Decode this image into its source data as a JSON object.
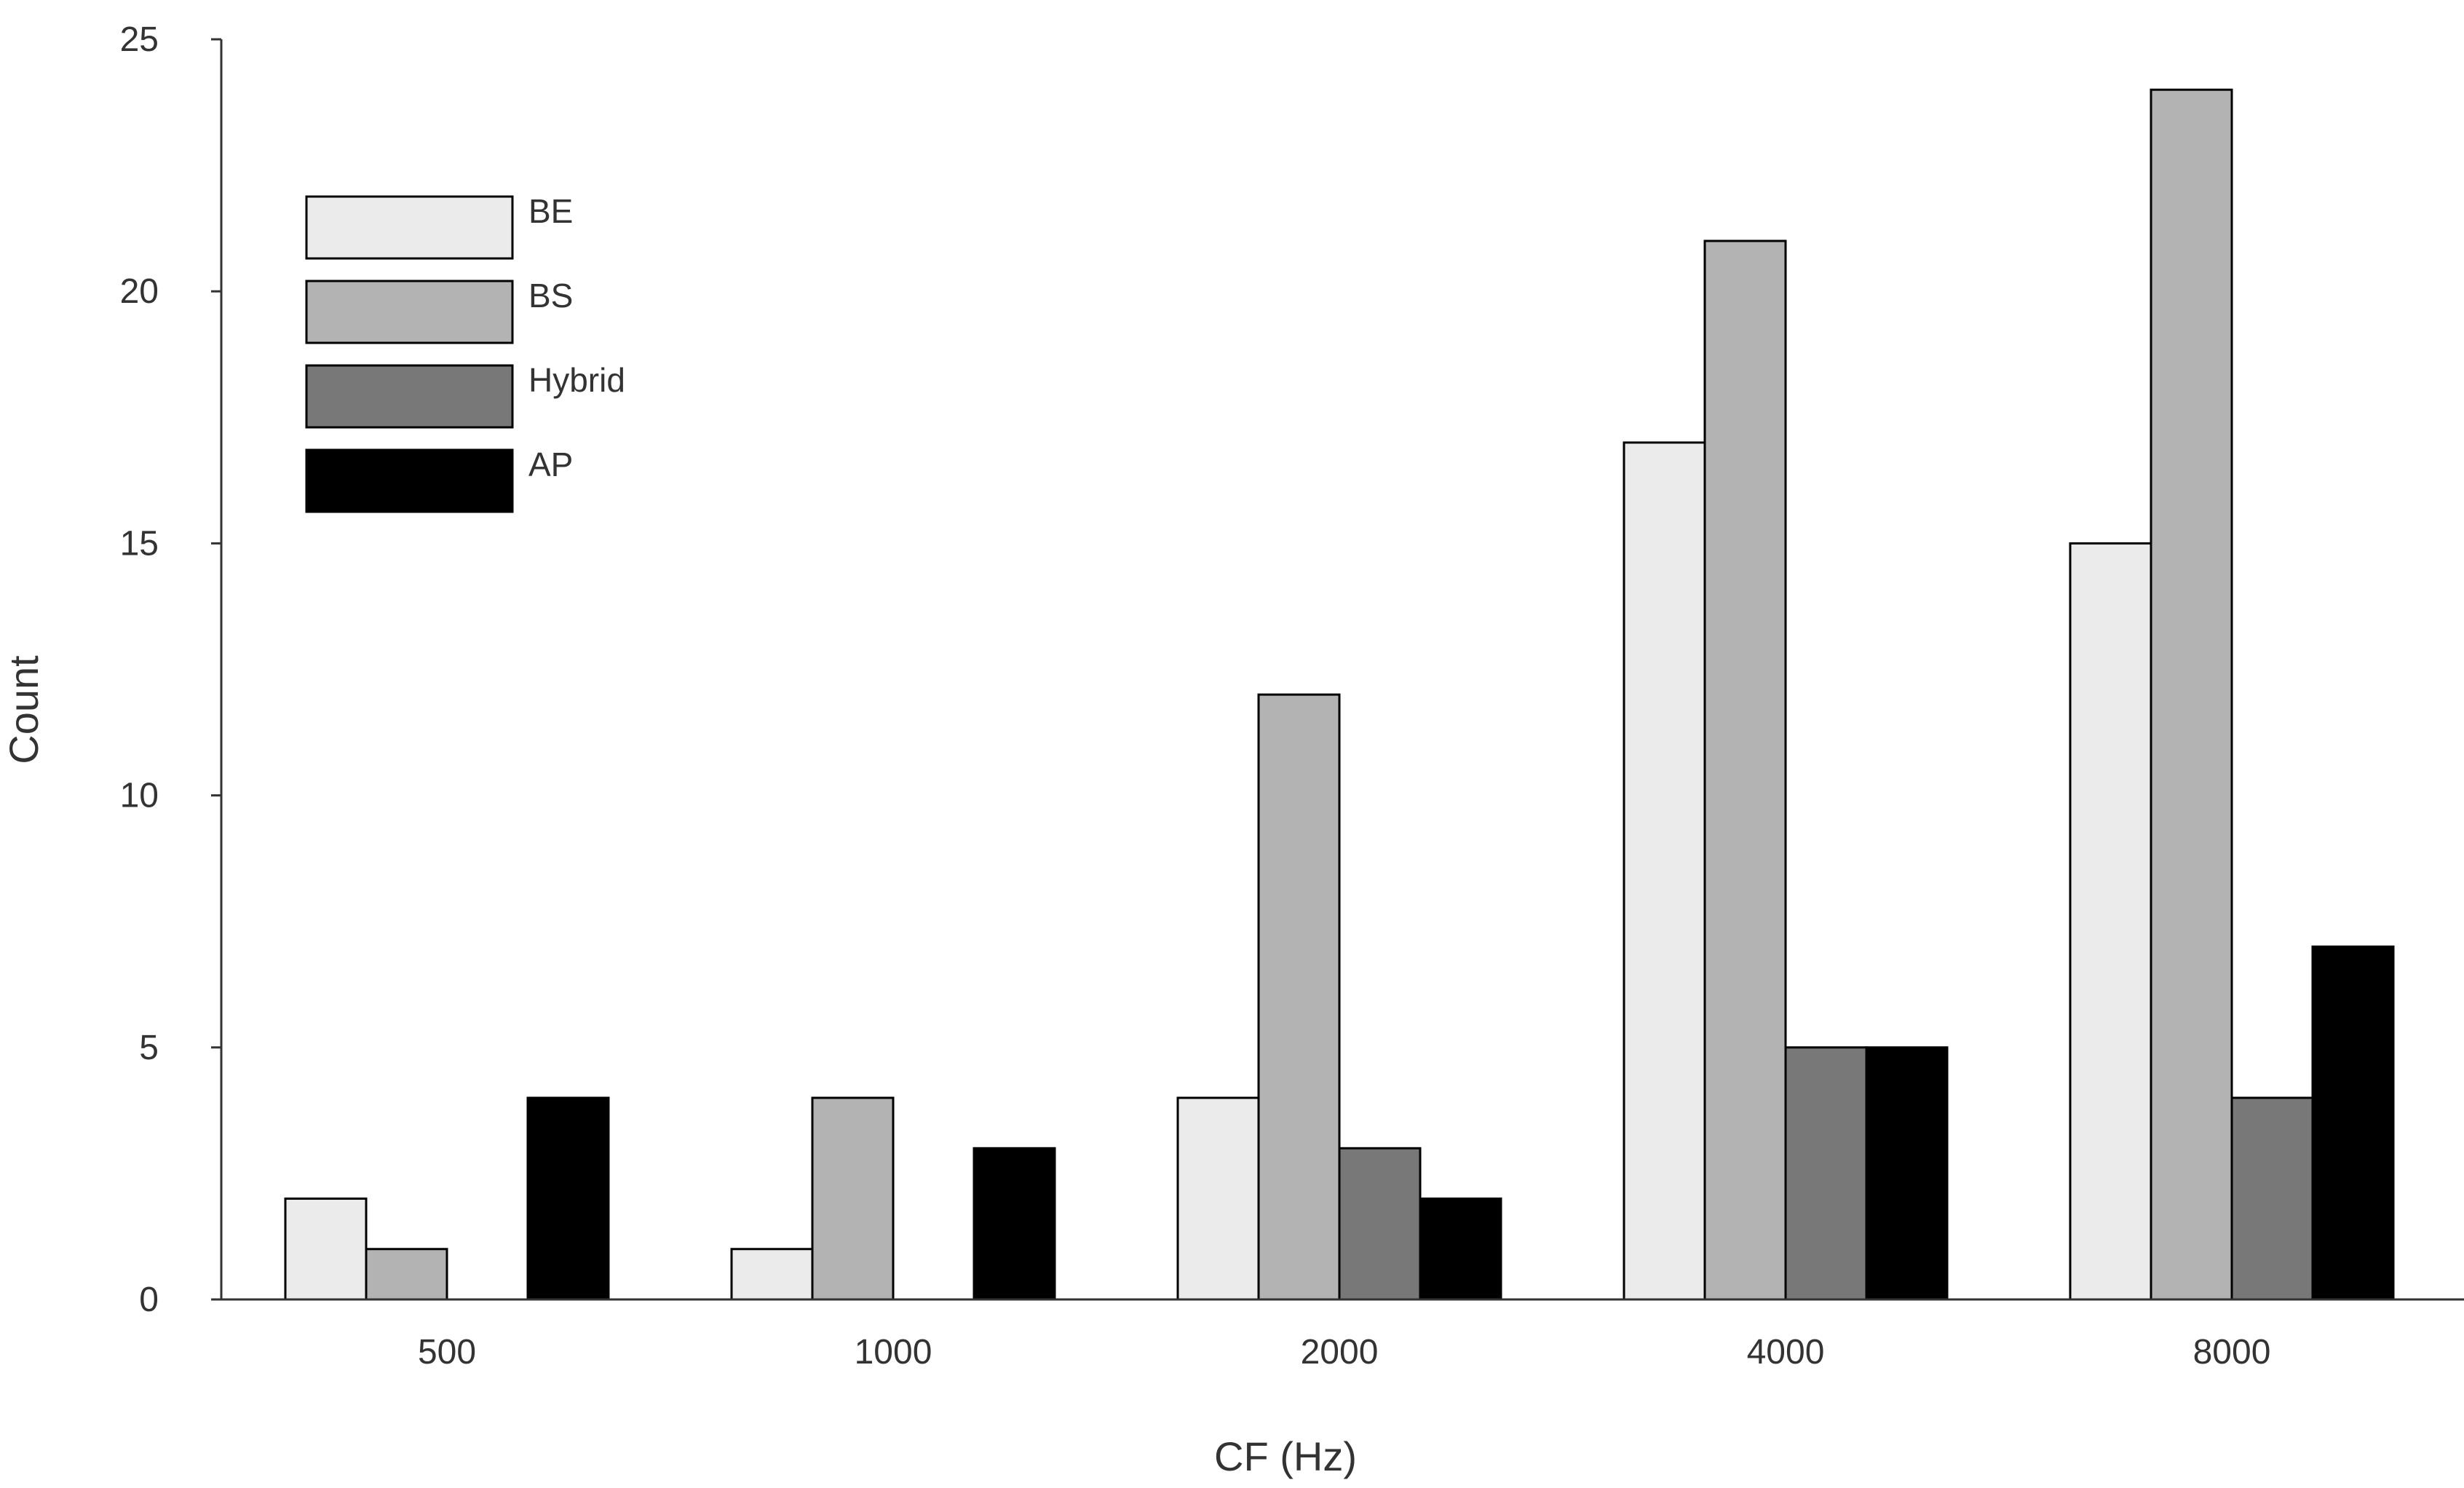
{
  "chart_data": {
    "type": "bar",
    "title": "",
    "xlabel": "CF (Hz)",
    "ylabel": "Count",
    "categories": [
      "500",
      "1000",
      "2000",
      "4000",
      "8000"
    ],
    "ylim": [
      0,
      25
    ],
    "yticks": [
      0,
      5,
      10,
      15,
      20,
      25
    ],
    "grid": false,
    "legend_position": "top-left",
    "series": [
      {
        "name": "BE",
        "color": "#ebebeb",
        "values": [
          2,
          1,
          4,
          17,
          15
        ]
      },
      {
        "name": "BS",
        "color": "#b3b3b3",
        "values": [
          1,
          4,
          12,
          21,
          24
        ]
      },
      {
        "name": "Hybrid",
        "color": "#787878",
        "values": [
          0,
          0,
          3,
          5,
          4
        ]
      },
      {
        "name": "AP",
        "color": "#000000",
        "values": [
          4,
          3,
          2,
          5,
          7
        ]
      }
    ]
  }
}
